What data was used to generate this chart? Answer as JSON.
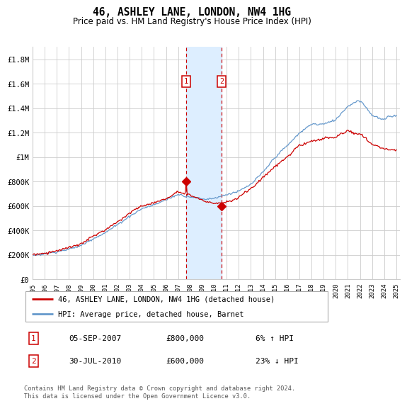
{
  "title": "46, ASHLEY LANE, LONDON, NW4 1HG",
  "subtitle": "Price paid vs. HM Land Registry's House Price Index (HPI)",
  "footer": "Contains HM Land Registry data © Crown copyright and database right 2024.\nThis data is licensed under the Open Government Licence v3.0.",
  "legend_line1": "46, ASHLEY LANE, LONDON, NW4 1HG (detached house)",
  "legend_line2": "HPI: Average price, detached house, Barnet",
  "annotation1_label": "1",
  "annotation1_date": "05-SEP-2007",
  "annotation1_price": "£800,000",
  "annotation1_hpi": "6% ↑ HPI",
  "annotation2_label": "2",
  "annotation2_date": "30-JUL-2010",
  "annotation2_price": "£600,000",
  "annotation2_hpi": "23% ↓ HPI",
  "red_color": "#cc0000",
  "blue_color": "#6699cc",
  "shaded_color": "#ddeeff",
  "annotation_box_color": "#cc0000",
  "background_color": "#ffffff",
  "grid_color": "#cccccc",
  "ylim": [
    0,
    1900000
  ],
  "yticks": [
    0,
    200000,
    400000,
    600000,
    800000,
    1000000,
    1200000,
    1400000,
    1600000,
    1800000
  ],
  "ytick_labels": [
    "£0",
    "£200K",
    "£400K",
    "£600K",
    "£800K",
    "£1M",
    "£1.2M",
    "£1.4M",
    "£1.6M",
    "£1.8M"
  ],
  "sale1_year": 2007.67,
  "sale1_price": 800000,
  "sale2_year": 2010.58,
  "sale2_price": 600000
}
